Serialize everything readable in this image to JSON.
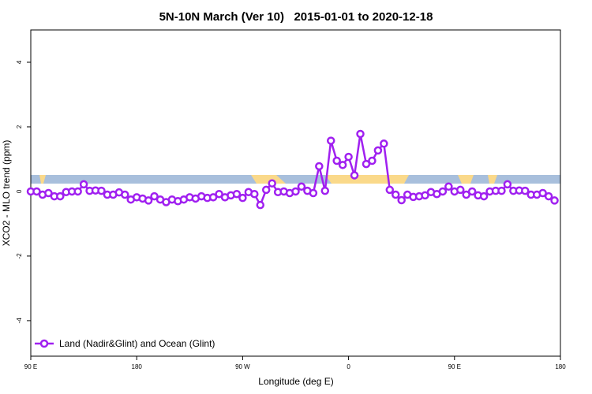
{
  "chart_data": {
    "type": "line",
    "title": "5N-10N March (Ver 10)   2015-01-01 to 2020-12-18",
    "x_label": "Longitude (deg E)",
    "y_label": "XCO2 - MLO trend (ppm)",
    "x": [
      90,
      95,
      100,
      105,
      110,
      115,
      120,
      125,
      130,
      135,
      140,
      145,
      150,
      155,
      160,
      165,
      170,
      175,
      180,
      185,
      190,
      195,
      200,
      205,
      210,
      215,
      220,
      225,
      230,
      235,
      240,
      245,
      250,
      255,
      260,
      265,
      270,
      275,
      280,
      285,
      290,
      295,
      300,
      305,
      310,
      315,
      320,
      325,
      330,
      335,
      340,
      345,
      350,
      355,
      360,
      365,
      370,
      375,
      380,
      385,
      390,
      395,
      400,
      405,
      410,
      415,
      420,
      425,
      430,
      435,
      440,
      445,
      450,
      455,
      460,
      465,
      470,
      475,
      480,
      485,
      490,
      495,
      500,
      505,
      510,
      515,
      520,
      525,
      530,
      535
    ],
    "series": [
      {
        "name": "Land (Nadir&Glint) and Ocean (Glint)",
        "color": "#a020f0",
        "values": [
          0.0,
          0.0,
          -0.1,
          -0.05,
          -0.15,
          -0.15,
          -0.02,
          0.0,
          0.0,
          0.22,
          0.02,
          0.03,
          0.02,
          -0.1,
          -0.1,
          -0.03,
          -0.1,
          -0.25,
          -0.18,
          -0.22,
          -0.28,
          -0.15,
          -0.25,
          -0.33,
          -0.25,
          -0.3,
          -0.25,
          -0.18,
          -0.22,
          -0.15,
          -0.2,
          -0.18,
          -0.08,
          -0.18,
          -0.12,
          -0.08,
          -0.2,
          -0.02,
          -0.08,
          -0.42,
          0.05,
          0.25,
          -0.02,
          0.0,
          -0.05,
          0.0,
          0.15,
          0.02,
          -0.05,
          0.78,
          0.02,
          1.57,
          0.95,
          0.82,
          1.07,
          0.5,
          1.78,
          0.85,
          0.95,
          1.27,
          1.48,
          0.05,
          -0.1,
          -0.27,
          -0.1,
          -0.17,
          -0.15,
          -0.12,
          -0.02,
          -0.08,
          0.0,
          0.15,
          0.0,
          0.05,
          -0.1,
          0.0,
          -0.12,
          -0.15,
          0.0,
          0.02,
          0.02,
          0.22,
          0.02,
          0.03,
          0.02,
          -0.1,
          -0.1,
          -0.05,
          -0.15,
          -0.28
        ]
      }
    ],
    "xlim": [
      90,
      540
    ],
    "xticks": [
      {
        "value": 90,
        "label": "90 E"
      },
      180,
      {
        "value": 270,
        "label": "90 W"
      },
      {
        "value": 360,
        "label": "0"
      },
      {
        "value": 450,
        "label": "90 E"
      },
      {
        "value": 540,
        "label": "180"
      }
    ],
    "ylim": [
      -5.1,
      5
    ],
    "yticks": [
      -4,
      -2,
      0,
      2,
      4
    ],
    "legend": "bottom-left"
  }
}
